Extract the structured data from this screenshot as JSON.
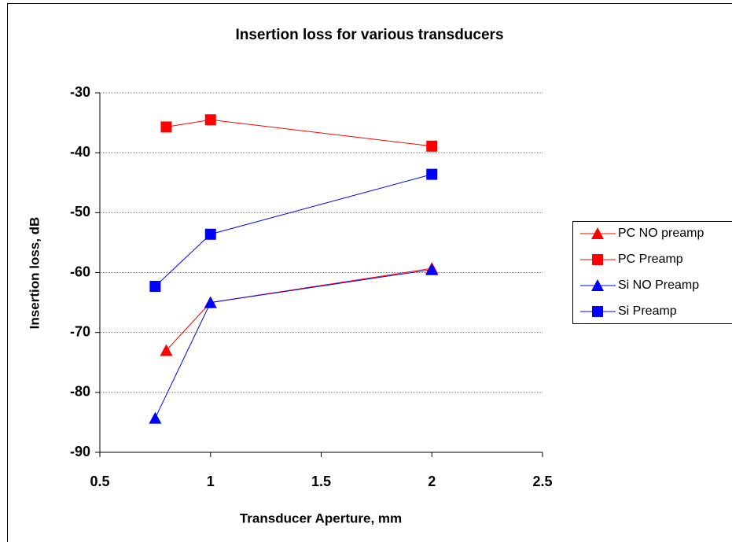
{
  "chart_data": {
    "type": "line",
    "title": "Insertion loss for various  transducers",
    "x_label": "Transducer Aperture, mm",
    "y_label": "Insertion loss, dB",
    "xlim": [
      0.5,
      2.5
    ],
    "xticks": [
      0.5,
      1,
      1.5,
      2,
      2.5
    ],
    "ylim": [
      -90,
      -30
    ],
    "yticks": [
      -90,
      -80,
      -70,
      -60,
      -50,
      -40,
      -30
    ],
    "grid": true,
    "legend": "right",
    "series": [
      {
        "name": "PC NO preamp",
        "color": "#ff0000",
        "marker": "triangle",
        "x": [
          0.8,
          1,
          2
        ],
        "values": [
          -73,
          -65,
          -59.3
        ]
      },
      {
        "name": "PC Preamp",
        "color": "#ff0000",
        "marker": "square",
        "x": [
          0.8,
          1,
          2
        ],
        "values": [
          -35.7,
          -34.5,
          -38.9
        ]
      },
      {
        "name": "Si NO Preamp",
        "color": "#0000ff",
        "marker": "triangle",
        "x": [
          0.75,
          1,
          2
        ],
        "values": [
          -84.3,
          -65,
          -59.5
        ]
      },
      {
        "name": "Si Preamp",
        "color": "#0000ff",
        "marker": "square",
        "x": [
          0.75,
          1,
          2
        ],
        "values": [
          -62.3,
          -53.6,
          -43.6
        ]
      }
    ]
  }
}
